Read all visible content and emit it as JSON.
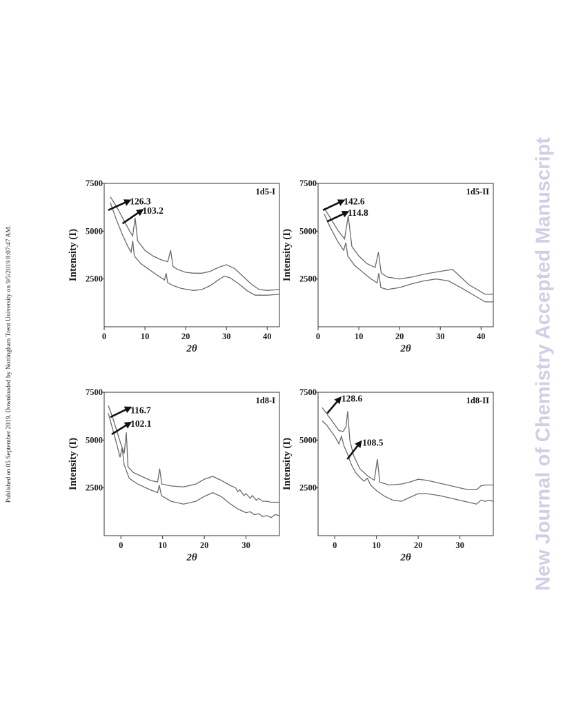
{
  "page": {
    "side_note": "Published on 05 September 2019. Downloaded by Nottingham Trent University on 9/5/2019 8:07:47 AM.",
    "watermark": "New Journal of Chemistry Accepted Manuscript"
  },
  "chart_data": [
    {
      "type": "line",
      "panel_label": "1d5-I",
      "xlabel": "2θ",
      "ylabel": "Intensity (I)",
      "xlim": [
        0,
        43
      ],
      "ylim": [
        0,
        7500
      ],
      "xticks": [
        0,
        10,
        20,
        30,
        40
      ],
      "yticks": [
        2500,
        5000,
        7500
      ],
      "grid": false,
      "annotations": [
        {
          "text": "126.3",
          "from": [
            1,
            6100
          ],
          "to": [
            6.2,
            6600
          ],
          "label_at": [
            6.3,
            6550
          ]
        },
        {
          "text": "103.2",
          "from": [
            4.5,
            5400
          ],
          "to": [
            9.3,
            6100
          ],
          "label_at": [
            9.4,
            6050
          ]
        }
      ],
      "series": [
        {
          "values": [
            [
              1.5,
              6800
            ],
            [
              3,
              6300
            ],
            [
              4.5,
              5700
            ],
            [
              6,
              5100
            ],
            [
              7,
              4750
            ],
            [
              7.6,
              5700
            ],
            [
              8.2,
              4500
            ],
            [
              10,
              4000
            ],
            [
              12,
              3700
            ],
            [
              14,
              3500
            ],
            [
              15.6,
              3400
            ],
            [
              16.3,
              4000
            ],
            [
              16.9,
              3150
            ],
            [
              18,
              3000
            ],
            [
              20,
              2850
            ],
            [
              22,
              2800
            ],
            [
              24,
              2800
            ],
            [
              26,
              2900
            ],
            [
              28,
              3100
            ],
            [
              30,
              3250
            ],
            [
              32,
              3050
            ],
            [
              34,
              2650
            ],
            [
              36,
              2250
            ],
            [
              38,
              1950
            ],
            [
              40,
              1900
            ],
            [
              43,
              1950
            ]
          ]
        },
        {
          "values": [
            [
              1.5,
              6500
            ],
            [
              3,
              5600
            ],
            [
              4.5,
              4800
            ],
            [
              5.8,
              4200
            ],
            [
              6.6,
              3900
            ],
            [
              7,
              4500
            ],
            [
              7.4,
              3700
            ],
            [
              9,
              3300
            ],
            [
              11,
              3000
            ],
            [
              13,
              2700
            ],
            [
              14.8,
              2450
            ],
            [
              15.2,
              2800
            ],
            [
              15.6,
              2300
            ],
            [
              17,
              2150
            ],
            [
              19,
              2000
            ],
            [
              22,
              1900
            ],
            [
              24,
              1950
            ],
            [
              26,
              2150
            ],
            [
              28,
              2450
            ],
            [
              29.5,
              2650
            ],
            [
              31,
              2550
            ],
            [
              33,
              2250
            ],
            [
              35,
              1900
            ],
            [
              37,
              1650
            ],
            [
              40,
              1650
            ],
            [
              43,
              1700
            ]
          ]
        }
      ]
    },
    {
      "type": "line",
      "panel_label": "1d5-II",
      "xlabel": "2θ",
      "ylabel": "Intensity (I)",
      "xlim": [
        0,
        43
      ],
      "ylim": [
        0,
        7500
      ],
      "xticks": [
        0,
        10,
        20,
        30,
        40
      ],
      "yticks": [
        2500,
        5000,
        7500
      ],
      "grid": false,
      "annotations": [
        {
          "text": "142.6",
          "from": [
            1.2,
            6100
          ],
          "to": [
            6.2,
            6600
          ],
          "label_at": [
            6.3,
            6550
          ]
        },
        {
          "text": "114.8",
          "from": [
            2.2,
            5500
          ],
          "to": [
            7.2,
            6000
          ],
          "label_at": [
            7.3,
            5950
          ]
        }
      ],
      "series": [
        {
          "values": [
            [
              1.5,
              6200
            ],
            [
              3,
              5700
            ],
            [
              5,
              5000
            ],
            [
              6.5,
              4600
            ],
            [
              7.4,
              5800
            ],
            [
              8.3,
              4200
            ],
            [
              10,
              3700
            ],
            [
              12,
              3300
            ],
            [
              14,
              3100
            ],
            [
              14.8,
              3900
            ],
            [
              15.5,
              2800
            ],
            [
              17,
              2600
            ],
            [
              20,
              2500
            ],
            [
              23,
              2600
            ],
            [
              26,
              2750
            ],
            [
              30,
              2900
            ],
            [
              33,
              3000
            ],
            [
              35,
              2600
            ],
            [
              37,
              2200
            ],
            [
              39,
              1950
            ],
            [
              41,
              1700
            ],
            [
              43,
              1700
            ]
          ]
        },
        {
          "values": [
            [
              1.5,
              5900
            ],
            [
              3,
              5200
            ],
            [
              5,
              4400
            ],
            [
              6.3,
              4000
            ],
            [
              6.8,
              4400
            ],
            [
              7.3,
              3700
            ],
            [
              9,
              3200
            ],
            [
              11,
              2850
            ],
            [
              13,
              2500
            ],
            [
              14.5,
              2300
            ],
            [
              14.9,
              2800
            ],
            [
              15.4,
              2050
            ],
            [
              17,
              1950
            ],
            [
              20,
              2050
            ],
            [
              23,
              2250
            ],
            [
              26,
              2400
            ],
            [
              29,
              2500
            ],
            [
              32,
              2400
            ],
            [
              35,
              2050
            ],
            [
              37,
              1800
            ],
            [
              39,
              1550
            ],
            [
              41,
              1300
            ],
            [
              43,
              1300
            ]
          ]
        }
      ]
    },
    {
      "type": "line",
      "panel_label": "1d8-I",
      "xlabel": "2θ",
      "ylabel": "Intensity (I)",
      "xlim": [
        -4,
        38
      ],
      "ylim": [
        0,
        7500
      ],
      "xticks": [
        0,
        10,
        20,
        30
      ],
      "yticks": [
        2500,
        5000,
        7500
      ],
      "grid": false,
      "annotations": [
        {
          "text": "116.7",
          "from": [
            -2.5,
            6200
          ],
          "to": [
            2.2,
            6700
          ],
          "label_at": [
            2.3,
            6550
          ]
        },
        {
          "text": "102.1",
          "from": [
            -2.2,
            5300
          ],
          "to": [
            2.2,
            5900
          ],
          "label_at": [
            2.3,
            5850
          ]
        }
      ],
      "series": [
        {
          "values": [
            [
              -3,
              6800
            ],
            [
              -2,
              6200
            ],
            [
              -1,
              5500
            ],
            [
              0,
              4800
            ],
            [
              0.8,
              4300
            ],
            [
              1.3,
              5400
            ],
            [
              1.7,
              3600
            ],
            [
              3,
              3300
            ],
            [
              5,
              3100
            ],
            [
              7,
              2900
            ],
            [
              8.8,
              2800
            ],
            [
              9.3,
              3500
            ],
            [
              9.8,
              2700
            ],
            [
              12,
              2600
            ],
            [
              15,
              2550
            ],
            [
              18,
              2700
            ],
            [
              20,
              2950
            ],
            [
              22,
              3100
            ],
            [
              24,
              2900
            ],
            [
              26,
              2650
            ],
            [
              27.5,
              2500
            ],
            [
              28,
              2300
            ],
            [
              28.5,
              2400
            ],
            [
              29.5,
              2100
            ],
            [
              30,
              2200
            ],
            [
              31,
              1950
            ],
            [
              31.5,
              2100
            ],
            [
              32.5,
              1850
            ],
            [
              33,
              1950
            ],
            [
              34,
              1800
            ],
            [
              35,
              1800
            ],
            [
              36,
              1750
            ],
            [
              38,
              1750
            ]
          ]
        },
        {
          "values": [
            [
              -3,
              6400
            ],
            [
              -2,
              5600
            ],
            [
              -1,
              4800
            ],
            [
              -0.2,
              4100
            ],
            [
              0.3,
              4600
            ],
            [
              0.8,
              3700
            ],
            [
              2,
              3000
            ],
            [
              4,
              2700
            ],
            [
              7,
              2400
            ],
            [
              8.8,
              2250
            ],
            [
              9.2,
              2650
            ],
            [
              9.7,
              2100
            ],
            [
              12,
              1800
            ],
            [
              15,
              1650
            ],
            [
              18,
              1800
            ],
            [
              20,
              2050
            ],
            [
              22,
              2250
            ],
            [
              24,
              2050
            ],
            [
              26,
              1700
            ],
            [
              28,
              1400
            ],
            [
              29,
              1300
            ],
            [
              30,
              1200
            ],
            [
              31,
              1250
            ],
            [
              32,
              1100
            ],
            [
              33,
              1150
            ],
            [
              34,
              1000
            ],
            [
              35,
              1050
            ],
            [
              36,
              950
            ],
            [
              37,
              1100
            ],
            [
              38,
              1050
            ]
          ]
        }
      ]
    },
    {
      "type": "line",
      "panel_label": "1d8-II",
      "xlabel": "2θ",
      "ylabel": "Intensity (I)",
      "xlim": [
        -4,
        38
      ],
      "ylim": [
        0,
        7500
      ],
      "xticks": [
        0,
        10,
        20,
        30
      ],
      "yticks": [
        2500,
        5000,
        7500
      ],
      "grid": false,
      "annotations": [
        {
          "text": "128.6",
          "from": [
            -1.8,
            6400
          ],
          "to": [
            1.3,
            7200
          ],
          "label_at": [
            1.6,
            7150
          ]
        },
        {
          "text": "108.5",
          "from": [
            3,
            4000
          ],
          "to": [
            6.2,
            4900
          ],
          "label_at": [
            6.6,
            4850
          ]
        }
      ],
      "series": [
        {
          "values": [
            [
              -3,
              6700
            ],
            [
              -2,
              6400
            ],
            [
              -1,
              6100
            ],
            [
              0,
              5800
            ],
            [
              1,
              5500
            ],
            [
              2,
              5450
            ],
            [
              2.7,
              5700
            ],
            [
              3.1,
              6500
            ],
            [
              3.6,
              5000
            ],
            [
              4.5,
              4200
            ],
            [
              6,
              3500
            ],
            [
              8,
              3100
            ],
            [
              9.5,
              2900
            ],
            [
              10.2,
              4000
            ],
            [
              10.8,
              2800
            ],
            [
              13,
              2650
            ],
            [
              16,
              2700
            ],
            [
              18,
              2800
            ],
            [
              20,
              2950
            ],
            [
              22,
              2900
            ],
            [
              25,
              2750
            ],
            [
              28,
              2600
            ],
            [
              30,
              2500
            ],
            [
              32,
              2400
            ],
            [
              34,
              2400
            ],
            [
              35,
              2600
            ],
            [
              36,
              2650
            ],
            [
              38,
              2650
            ]
          ]
        },
        {
          "values": [
            [
              -3,
              6000
            ],
            [
              -2,
              5800
            ],
            [
              -1,
              5500
            ],
            [
              0,
              5200
            ],
            [
              1,
              4800
            ],
            [
              1.6,
              5200
            ],
            [
              2.2,
              4700
            ],
            [
              3,
              4300
            ],
            [
              4,
              3700
            ],
            [
              5,
              3300
            ],
            [
              6,
              3050
            ],
            [
              7,
              2850
            ],
            [
              7.8,
              3000
            ],
            [
              8.6,
              2650
            ],
            [
              10,
              2350
            ],
            [
              12,
              2050
            ],
            [
              14,
              1850
            ],
            [
              16,
              1800
            ],
            [
              18,
              2000
            ],
            [
              20,
              2200
            ],
            [
              22,
              2200
            ],
            [
              25,
              2100
            ],
            [
              28,
              1950
            ],
            [
              31,
              1800
            ],
            [
              33,
              1700
            ],
            [
              34,
              1650
            ],
            [
              35,
              1850
            ],
            [
              36,
              1800
            ],
            [
              37,
              1850
            ],
            [
              38,
              1800
            ]
          ]
        }
      ]
    }
  ]
}
